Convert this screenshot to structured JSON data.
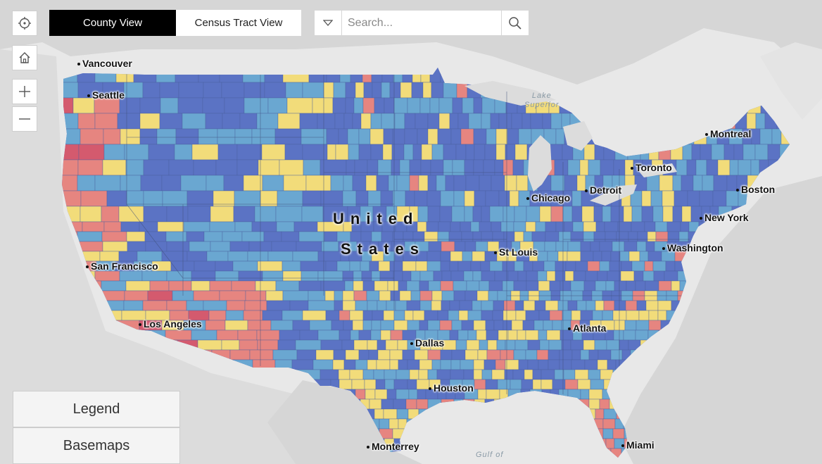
{
  "view_tabs": [
    {
      "label": "County View",
      "active": true
    },
    {
      "label": "Census Tract View",
      "active": false
    }
  ],
  "search": {
    "placeholder": "Search..."
  },
  "tools": {
    "locate_icon": "crosshair-icon",
    "home_icon": "home-icon",
    "zoom_in_icon": "plus-icon",
    "zoom_out_icon": "minus-icon"
  },
  "panels": {
    "legend_label": "Legend",
    "basemaps_label": "Basemaps"
  },
  "country_label": [
    "United",
    "States"
  ],
  "cities": [
    {
      "id": "vancouver",
      "label": "Vancouver"
    },
    {
      "id": "seattle",
      "label": "Seattle"
    },
    {
      "id": "san-francisco",
      "label": "San Francisco"
    },
    {
      "id": "los-angeles",
      "label": "Los Angeles"
    },
    {
      "id": "dallas",
      "label": "Dallas"
    },
    {
      "id": "houston",
      "label": "Houston"
    },
    {
      "id": "monterrey",
      "label": "Monterrey"
    },
    {
      "id": "st-louis",
      "label": "St Louis"
    },
    {
      "id": "chicago",
      "label": "Chicago"
    },
    {
      "id": "detroit",
      "label": "Detroit"
    },
    {
      "id": "toronto",
      "label": "Toronto"
    },
    {
      "id": "montreal",
      "label": "Montreal"
    },
    {
      "id": "boston",
      "label": "Boston"
    },
    {
      "id": "new-york",
      "label": "New York"
    },
    {
      "id": "washington",
      "label": "Washington"
    },
    {
      "id": "atlanta",
      "label": "Atlanta"
    },
    {
      "id": "miami",
      "label": "Miami"
    }
  ],
  "water_labels": {
    "lake_superior": [
      "Lake",
      "Superior"
    ],
    "gulf": "Gulf of"
  },
  "colors": {
    "land": "#d4d4d4",
    "water": "#e8e8e8",
    "dark_blue": "#5b73c4",
    "light_blue": "#6aa7d1",
    "yellow": "#f2dc7a",
    "salmon": "#e68580",
    "crimson": "#d45a6e"
  }
}
